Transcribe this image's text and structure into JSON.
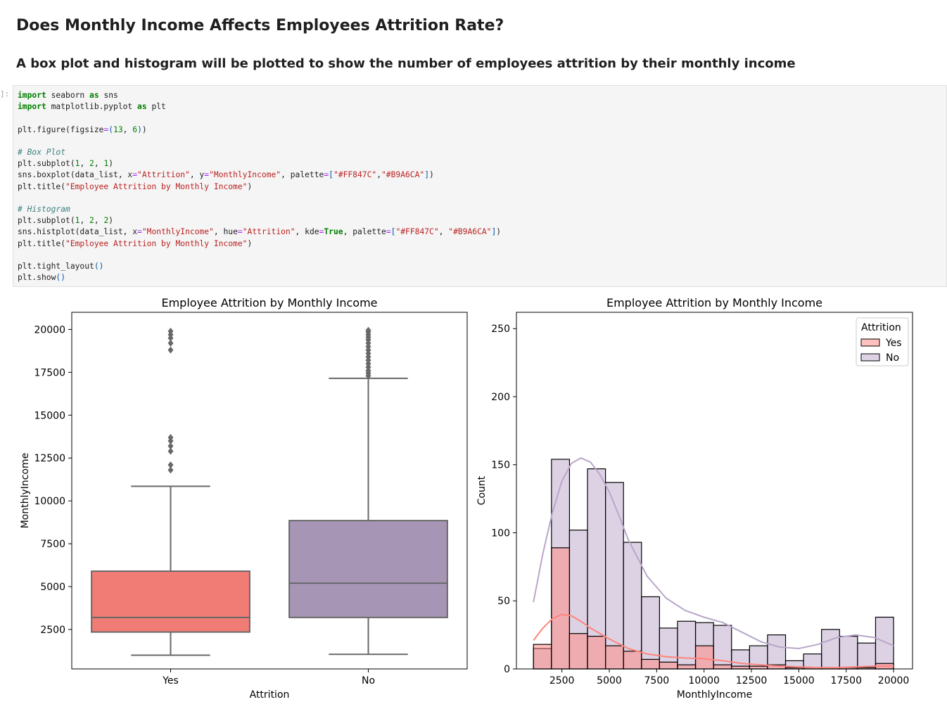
{
  "markdown": {
    "heading": "Does Monthly Income Affects Employees Attrition Rate?",
    "subheading": "A box plot and histogram will be plotted to show the number of employees attrition by their monthly income"
  },
  "cell": {
    "prompt": "]:"
  },
  "colors": {
    "yes": "#FF847C",
    "no": "#B9A6CA",
    "code_bg": "#f5f5f5"
  },
  "chart_data": [
    {
      "type": "box",
      "title": "Employee Attrition by Monthly Income",
      "xlabel": "Attrition",
      "ylabel": "MonthlyIncome",
      "categories": [
        "Yes",
        "No"
      ],
      "yticks": [
        2500,
        5000,
        7500,
        10000,
        12500,
        15000,
        17500,
        20000
      ],
      "ylim": [
        200,
        21000
      ],
      "boxes": [
        {
          "name": "Yes",
          "color": "#FF847C",
          "whisker_low": 1000,
          "q1": 2350,
          "median": 3200,
          "q3": 5900,
          "whisker_high": 10850,
          "outliers": [
            11800,
            12100,
            12900,
            13200,
            13500,
            13700,
            18800,
            19200,
            19500,
            19700,
            19900
          ]
        },
        {
          "name": "No",
          "color": "#B9A6CA",
          "whisker_low": 1050,
          "q1": 3200,
          "median": 5200,
          "q3": 8850,
          "whisker_high": 17150,
          "outliers": [
            17300,
            17450,
            17600,
            17800,
            18000,
            18200,
            18400,
            18600,
            18800,
            19000,
            19200,
            19400,
            19550,
            19700,
            19850,
            19950
          ]
        }
      ]
    },
    {
      "type": "bar",
      "title": "Employee Attrition by Monthly Income",
      "xlabel": "MonthlyIncome",
      "ylabel": "Count",
      "xticks": [
        2500,
        5000,
        7500,
        10000,
        12500,
        15000,
        17500,
        20000
      ],
      "yticks": [
        0,
        50,
        100,
        150,
        200,
        250
      ],
      "xlim": [
        100,
        21000
      ],
      "ylim": [
        0,
        262
      ],
      "bin_start": 1000,
      "bin_width": 950,
      "legend": {
        "title": "Attrition",
        "position": "top-right",
        "entries": [
          "Yes",
          "No"
        ]
      },
      "series": [
        {
          "name": "Yes",
          "color": "#FF847C",
          "values": [
            18,
            89,
            26,
            24,
            17,
            13,
            7,
            5,
            3,
            17,
            3,
            2,
            2,
            3,
            1,
            1,
            1,
            1,
            1,
            4
          ],
          "kde_x": [
            1000,
            1500,
            2000,
            2500,
            3000,
            3500,
            4000,
            5000,
            6000,
            7000,
            8000,
            9000,
            10000,
            11000,
            12000,
            13000,
            14000,
            15000,
            16000,
            17000,
            18000,
            19000,
            20000
          ],
          "kde_y": [
            21,
            30,
            37,
            40,
            39,
            35,
            30,
            22,
            15,
            11,
            9,
            8,
            7.5,
            6,
            4,
            3,
            2,
            1.5,
            1,
            1,
            1.5,
            2,
            2
          ]
        },
        {
          "name": "No",
          "color": "#B9A6CA",
          "values": [
            15,
            154,
            102,
            147,
            137,
            93,
            53,
            30,
            35,
            34,
            32,
            14,
            17,
            25,
            6,
            11,
            29,
            24,
            19,
            38
          ],
          "kde_x": [
            1000,
            1500,
            2000,
            2500,
            3000,
            3500,
            4000,
            4500,
            5000,
            5500,
            6000,
            7000,
            8000,
            9000,
            10000,
            11000,
            12000,
            13000,
            14000,
            15000,
            16000,
            17000,
            18000,
            19000,
            20000
          ],
          "kde_y": [
            49,
            85,
            115,
            138,
            151,
            155,
            152,
            143,
            130,
            113,
            95,
            68,
            52,
            43,
            38,
            34,
            27,
            20,
            16,
            15,
            18,
            23,
            25,
            23,
            17
          ]
        }
      ]
    }
  ]
}
